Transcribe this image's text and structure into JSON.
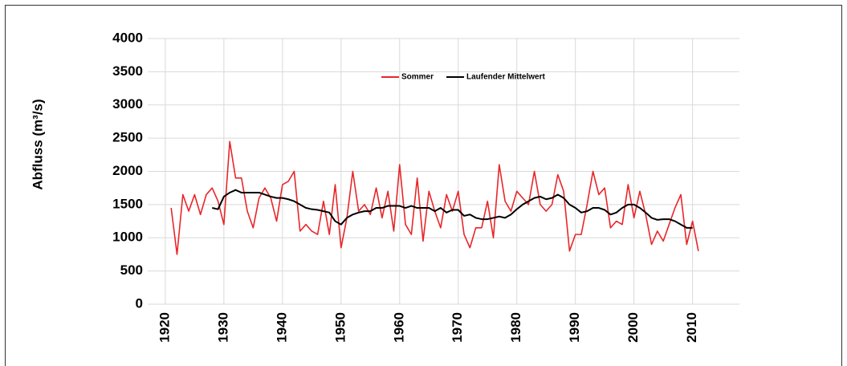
{
  "chart_data": {
    "type": "line",
    "y_label": "Abfluss (m³/s)",
    "x": [
      1921,
      1922,
      1923,
      1924,
      1925,
      1926,
      1927,
      1928,
      1929,
      1930,
      1931,
      1932,
      1933,
      1934,
      1935,
      1936,
      1937,
      1938,
      1939,
      1940,
      1941,
      1942,
      1943,
      1944,
      1945,
      1946,
      1947,
      1948,
      1949,
      1950,
      1951,
      1952,
      1953,
      1954,
      1955,
      1956,
      1957,
      1958,
      1959,
      1960,
      1961,
      1962,
      1963,
      1964,
      1965,
      1966,
      1967,
      1968,
      1969,
      1970,
      1971,
      1972,
      1973,
      1974,
      1975,
      1976,
      1977,
      1978,
      1979,
      1980,
      1981,
      1982,
      1983,
      1984,
      1985,
      1986,
      1987,
      1988,
      1989,
      1990,
      1991,
      1992,
      1993,
      1994,
      1995,
      1996,
      1997,
      1998,
      1999,
      2000,
      2001,
      2002,
      2003,
      2004,
      2005,
      2006,
      2007,
      2008,
      2009,
      2010,
      2011
    ],
    "series": [
      {
        "name": "Sommer",
        "color": "#e8262a",
        "values": [
          1450,
          750,
          1650,
          1400,
          1650,
          1350,
          1650,
          1750,
          1550,
          1200,
          2450,
          1900,
          1900,
          1400,
          1150,
          1600,
          1750,
          1600,
          1250,
          1800,
          1850,
          2000,
          1100,
          1200,
          1100,
          1050,
          1550,
          1050,
          1800,
          850,
          1300,
          2000,
          1400,
          1500,
          1350,
          1750,
          1300,
          1700,
          1100,
          2100,
          1200,
          1050,
          1900,
          950,
          1700,
          1400,
          1150,
          1650,
          1400,
          1700,
          1050,
          850,
          1150,
          1150,
          1550,
          1000,
          2100,
          1550,
          1400,
          1700,
          1600,
          1500,
          2000,
          1500,
          1400,
          1500,
          1950,
          1700,
          800,
          1050,
          1050,
          1500,
          2000,
          1650,
          1750,
          1150,
          1250,
          1200,
          1800,
          1300,
          1700,
          1350,
          900,
          1100,
          950,
          1200,
          1450,
          1650,
          900,
          1250,
          800
        ]
      },
      {
        "name": "Laufender Mittelwert",
        "color": "#000000",
        "values": [
          null,
          null,
          null,
          null,
          null,
          null,
          null,
          1450,
          1430,
          1620,
          1680,
          1720,
          1680,
          1680,
          1680,
          1680,
          1650,
          1620,
          1600,
          1600,
          1580,
          1550,
          1500,
          1450,
          1430,
          1420,
          1400,
          1380,
          1250,
          1200,
          1300,
          1350,
          1380,
          1400,
          1400,
          1450,
          1450,
          1480,
          1480,
          1480,
          1450,
          1480,
          1450,
          1450,
          1450,
          1400,
          1450,
          1380,
          1420,
          1420,
          1330,
          1350,
          1300,
          1280,
          1280,
          1300,
          1320,
          1300,
          1350,
          1430,
          1500,
          1550,
          1600,
          1620,
          1580,
          1600,
          1650,
          1600,
          1500,
          1450,
          1380,
          1400,
          1450,
          1450,
          1420,
          1350,
          1380,
          1450,
          1500,
          1500,
          1450,
          1380,
          1300,
          1270,
          1280,
          1280,
          1250,
          1200,
          1150,
          1150,
          null
        ]
      }
    ],
    "xlim": [
      1917,
      2018
    ],
    "xticks": [
      1920,
      1930,
      1940,
      1950,
      1960,
      1970,
      1980,
      1990,
      2000,
      2010
    ],
    "ylim": [
      0,
      4000
    ],
    "yticks": [
      0,
      500,
      1000,
      1500,
      2000,
      2500,
      3000,
      3500,
      4000
    ],
    "grid": true,
    "legend": "upper center"
  }
}
